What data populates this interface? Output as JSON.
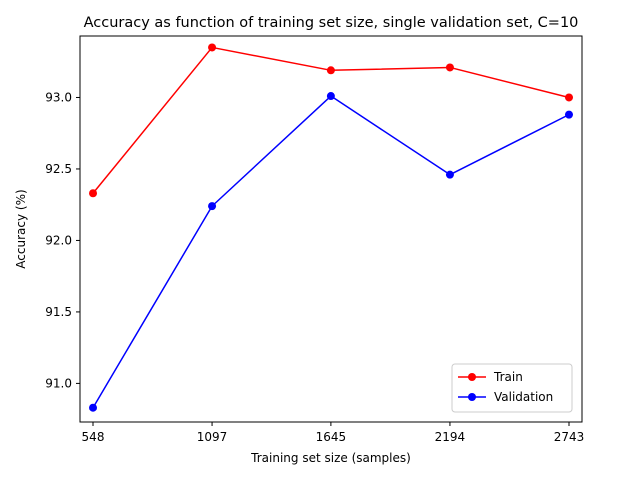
{
  "chart_data": {
    "type": "line",
    "title": "Accuracy as function of training set size, single validation set, C=10",
    "xlabel": "Training set size (samples)",
    "ylabel": "Accuracy (%)",
    "x": [
      548,
      1097,
      1645,
      2194,
      2743
    ],
    "x_tick_labels": [
      "548",
      "1097",
      "1645",
      "2194",
      "2743"
    ],
    "xlim": [
      488,
      2803
    ],
    "ylim": [
      90.73,
      93.43
    ],
    "y_ticks": [
      91.0,
      91.5,
      92.0,
      92.5,
      93.0
    ],
    "y_tick_labels": [
      "91.0",
      "91.5",
      "92.0",
      "92.5",
      "93.0"
    ],
    "grid": false,
    "legend_position": "lower right",
    "series": [
      {
        "name": "Train",
        "color": "#ff0000",
        "marker": "circle",
        "values": [
          92.33,
          93.35,
          93.19,
          93.21,
          93.0
        ]
      },
      {
        "name": "Validation",
        "color": "#0000ff",
        "marker": "circle",
        "values": [
          90.83,
          92.24,
          93.01,
          92.46,
          92.88
        ]
      }
    ]
  }
}
